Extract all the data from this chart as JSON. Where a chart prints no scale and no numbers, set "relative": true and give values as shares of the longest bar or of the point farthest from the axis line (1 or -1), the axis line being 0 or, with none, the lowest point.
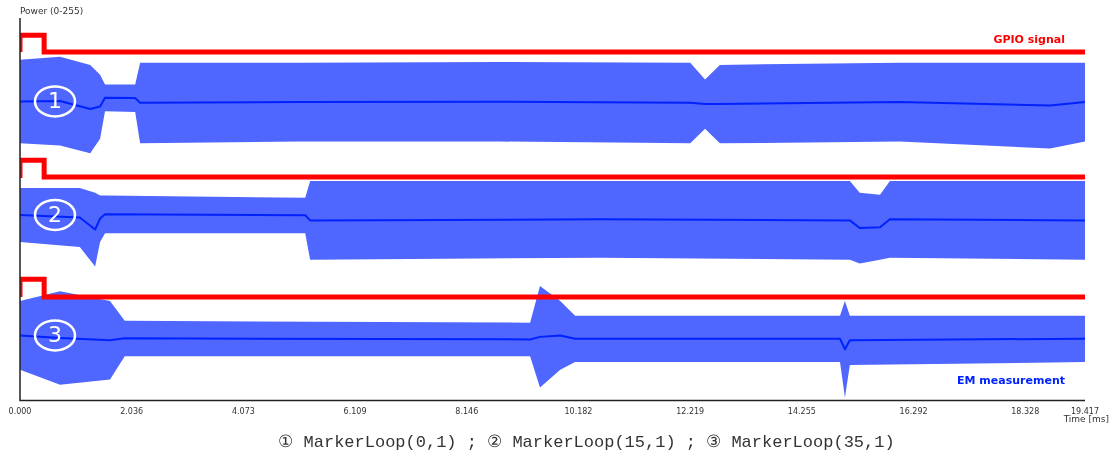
{
  "chart_data": {
    "type": "line",
    "relative": true,
    "ylabel": "Power (0-255)",
    "xlabel": "Time [ms]",
    "xlim": [
      0,
      19.417
    ],
    "xticks": [
      {
        "value": 0,
        "label": "0.000"
      },
      2.036,
      4.073,
      6.109,
      8.146,
      10.182,
      12.219,
      14.255,
      16.292,
      18.328,
      19.417
    ],
    "tick_labels": "x",
    "grid": false,
    "legend": false,
    "marker": "none",
    "series": [
      {
        "type": "step",
        "name": "GPIO signal",
        "color": "#ff0000",
        "x": [
          0,
          0.44,
          11.65,
          19.417
        ],
        "values": [
          0.954,
          1,
          0.954,
          0.954
        ]
      },
      {
        "color": "#0022ff",
        "x": [
          0,
          0.73,
          1.28,
          1.46,
          1.55,
          2.1,
          2.19,
          5.1,
          8.75,
          12.22,
          12.49,
          12.76,
          16.04,
          18.78,
          19.417
        ],
        "values": [
          0.819,
          0.82,
          0.798,
          0.805,
          0.829,
          0.828,
          0.815,
          0.817,
          0.818,
          0.815,
          0.812,
          0.812,
          0.817,
          0.808,
          0.817
        ],
        "upper": [
          0.933,
          0.941,
          0.919,
          0.892,
          0.865,
          0.865,
          0.925,
          0.925,
          0.927,
          0.925,
          0.879,
          0.919,
          0.925,
          0.925,
          0.925
        ],
        "lower": [
          0.704,
          0.698,
          0.677,
          0.717,
          0.792,
          0.79,
          0.704,
          0.709,
          0.709,
          0.704,
          0.744,
          0.704,
          0.709,
          0.69,
          0.709
        ]
      },
      {
        "type": "step",
        "color": "#ff0000",
        "x": [
          0,
          0.44,
          14.53,
          19.417
        ],
        "values": [
          0.609,
          0.658,
          0.612,
          0.612
        ]
      },
      {
        "color": "#0022ff",
        "x": [
          0,
          1.09,
          1.37,
          1.46,
          1.55,
          5.2,
          5.29,
          10.57,
          15.13,
          15.31,
          15.68,
          15.86,
          19.417
        ],
        "values": [
          0.508,
          0.501,
          0.468,
          0.498,
          0.51,
          0.507,
          0.493,
          0.496,
          0.493,
          0.472,
          0.474,
          0.496,
          0.493
        ],
        "upper": [
          0.582,
          0.582,
          0.569,
          0.561,
          0.561,
          0.555,
          0.601,
          0.601,
          0.601,
          0.569,
          0.563,
          0.601,
          0.601
        ],
        "lower": [
          0.434,
          0.42,
          0.367,
          0.434,
          0.458,
          0.458,
          0.385,
          0.391,
          0.385,
          0.375,
          0.385,
          0.391,
          0.385
        ]
      },
      {
        "type": "step",
        "color": "#ff0000",
        "x": [
          0,
          0.44,
          18.69,
          19.417
        ],
        "values": [
          0.283,
          0.332,
          0.283,
          0.283
        ]
      },
      {
        "name": "EM measurement",
        "color": "#0022ff",
        "x": [
          0,
          0.73,
          1.64,
          1.91,
          9.3,
          9.48,
          9.85,
          10.12,
          14.95,
          15.04,
          15.13,
          19.417
        ],
        "values": [
          0.178,
          0.171,
          0.165,
          0.17,
          0.167,
          0.174,
          0.178,
          0.169,
          0.169,
          0.14,
          0.165,
          0.169
        ],
        "upper": [
          0.272,
          0.299,
          0.272,
          0.218,
          0.213,
          0.313,
          0.272,
          0.232,
          0.232,
          0.272,
          0.232,
          0.232
        ],
        "lower": [
          0.084,
          0.043,
          0.057,
          0.121,
          0.121,
          0.035,
          0.084,
          0.105,
          0.105,
          0.008,
          0.097,
          0.105
        ]
      }
    ],
    "annotations": [
      "1",
      "2",
      "3",
      "① MarkerLoop(0,1) ; ② MarkerLoop(15,1) ; ③ MarkerLoop(35,1)"
    ]
  }
}
